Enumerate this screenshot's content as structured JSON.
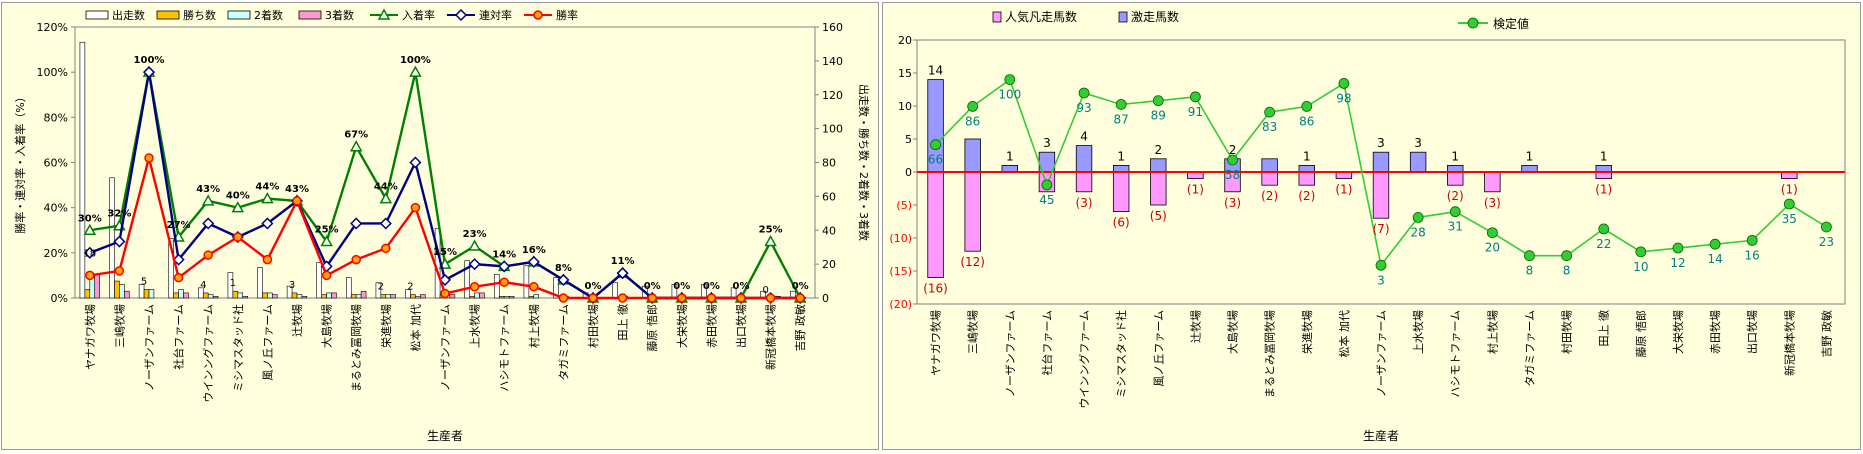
{
  "chart_data": [
    {
      "type": "bar",
      "xlabel": "生産者",
      "ylabel": "勝率・連対率・入着率（%）",
      "y2label": "出走数・勝ち数・2着数・3着数",
      "ylim": [
        0,
        120
      ],
      "y2lim": [
        0,
        160
      ],
      "yticks": [
        "0%",
        "20%",
        "40%",
        "60%",
        "80%",
        "100%",
        "120%"
      ],
      "y2ticks": [
        "0",
        "20",
        "40",
        "60",
        "80",
        "100",
        "120",
        "140",
        "160"
      ],
      "legend_position": "top",
      "grid": false,
      "categories": [
        "ヤナガワ牧場",
        "三嶋牧場",
        "ノーザンファーム",
        "社台ファーム",
        "ウインングファーム",
        "ミシマスタッド社",
        "風ノ丘ファーム",
        "辻牧場",
        "大島牧場",
        "まるとみ冨岡牧場",
        "栄進牧場",
        "松本 加代",
        "ノーザンファーム",
        "上水牧場",
        "ハシモトファーム",
        "村上牧場",
        "タガミファーム",
        "村田牧場",
        "田上 徹",
        "藤原 悟郎",
        "大栄牧場",
        "赤田牧場",
        "出口牧場",
        "新冠橋本牧場",
        "吉野 政敏"
      ],
      "bar_series": [
        {
          "name": "出走数",
          "color": "#FFFFFF",
          "values": [
            151,
            71,
            8,
            35,
            6,
            15,
            18,
            7,
            21,
            12,
            9,
            5,
            41,
            22,
            14,
            19,
            12,
            3,
            9,
            7,
            8,
            8,
            6,
            4,
            4
          ]
        },
        {
          "name": "勝ち数",
          "color": "#FFC000",
          "values": [
            5,
            10,
            5,
            3,
            3,
            4,
            3,
            3,
            2,
            2,
            2,
            2,
            2,
            1,
            1,
            1,
            0,
            0,
            0,
            0,
            0,
            0,
            0,
            0,
            0
          ]
        },
        {
          "name": "2着数",
          "color": "#CCFFFF",
          "values": [
            12,
            8,
            5,
            5,
            2,
            3,
            3,
            2,
            3,
            2,
            2,
            1,
            2,
            3,
            1,
            2,
            1,
            0,
            1,
            0,
            0,
            0,
            0,
            0,
            0
          ]
        },
        {
          "name": "3着数",
          "color": "#FF99CC",
          "values": [
            14,
            4,
            0,
            3,
            1,
            1,
            2,
            1,
            3,
            4,
            2,
            2,
            2,
            3,
            1,
            0,
            0,
            0,
            0,
            0,
            0,
            0,
            0,
            1,
            0
          ]
        }
      ],
      "line_series": [
        {
          "name": "入着率",
          "color": "#008000",
          "marker": "triangle",
          "values": [
            30,
            32,
            100,
            27,
            43,
            40,
            44,
            43,
            25,
            67,
            44,
            100,
            15,
            23,
            14,
            16,
            8,
            0,
            11,
            0,
            0,
            0,
            0,
            25,
            0
          ]
        },
        {
          "name": "連対率",
          "color": "#000080",
          "marker": "diamond",
          "values": [
            20,
            25,
            100,
            17,
            33,
            27,
            33,
            43,
            14,
            33,
            33,
            60,
            8,
            15,
            14,
            16,
            8,
            0,
            11,
            0,
            0,
            0,
            0,
            0,
            0
          ]
        },
        {
          "name": "勝率",
          "color": "#FF0000",
          "marker": "circle",
          "values": [
            10,
            12,
            62,
            9,
            19,
            27,
            17,
            43,
            10,
            17,
            22,
            40,
            2,
            5,
            7,
            5,
            0,
            0,
            0,
            0,
            0,
            0,
            0,
            0,
            0
          ]
        }
      ],
      "pct_labels": [
        "30%",
        "32%",
        "100%",
        "27%",
        "43%",
        "40%",
        "44%",
        "43%",
        "25%",
        "67%",
        "44%",
        "100%",
        "15%",
        "23%",
        "14%",
        "16%",
        "8%",
        "0%",
        "11%",
        "0%",
        "0%",
        "0%",
        "0%",
        "25%",
        "0%"
      ],
      "count_labels": [
        "",
        "",
        "5",
        "",
        "4",
        "1",
        "",
        "3",
        "",
        "",
        "2",
        "2",
        "",
        "",
        "",
        "",
        "",
        "",
        "",
        "",
        "",
        "",
        "",
        "0",
        ""
      ],
      "small_labels": [
        "18",
        "",
        "",
        "",
        "",
        "",
        "",
        "",
        "",
        "",
        "",
        "",
        "",
        "",
        "",
        "",
        "",
        "",
        "",
        "",
        "",
        "",
        "",
        "",
        ""
      ]
    },
    {
      "type": "bar",
      "xlabel": "生産者",
      "ylabel": "",
      "ylim": [
        -20,
        20
      ],
      "yticks": [
        "20",
        "15",
        "10",
        "5",
        "0",
        "(5)",
        "(10)",
        "(15)",
        "(20)"
      ],
      "legend_position": "top",
      "grid": false,
      "categories": [
        "ヤナガワ牧場",
        "三嶋牧場",
        "ノーザンファーム",
        "社台ファーム",
        "ウインングファーム",
        "ミシマスタッド社",
        "風ノ丘ファーム",
        "辻牧場",
        "大島牧場",
        "まるとみ冨岡牧場",
        "栄進牧場",
        "松本 加代",
        "ノーザンファーム",
        "上水牧場",
        "ハシモトファーム",
        "村上牧場",
        "タガミファーム",
        "村田牧場",
        "田上 徹",
        "藤原 悟郎",
        "大栄牧場",
        "赤田牧場",
        "出口牧場",
        "新冠橋本牧場",
        "吉野 政敏"
      ],
      "bar_series": [
        {
          "name": "人気凡走馬数",
          "color": "#FF99FF",
          "values": [
            -16,
            -12,
            0,
            -3,
            -3,
            -6,
            -5,
            -1,
            -3,
            -2,
            -2,
            -1,
            -7,
            0,
            -2,
            -3,
            0,
            0,
            -1,
            0,
            0,
            0,
            0,
            -1,
            0
          ]
        },
        {
          "name": "激走馬数",
          "color": "#9999FF",
          "values": [
            14,
            5,
            1,
            3,
            4,
            1,
            2,
            0,
            2,
            2,
            1,
            0,
            3,
            3,
            1,
            0,
            1,
            0,
            1,
            0,
            0,
            0,
            0,
            0,
            0
          ]
        }
      ],
      "line_series": [
        {
          "name": "検定値",
          "color": "#33CC33",
          "marker": "circle",
          "values": [
            66,
            86,
            100,
            45,
            93,
            87,
            89,
            91,
            58,
            83,
            86,
            98,
            3,
            28,
            31,
            20,
            8,
            8,
            22,
            10,
            12,
            14,
            16,
            35,
            23
          ]
        }
      ],
      "pos_labels": [
        "14",
        "",
        "1",
        "3",
        "4",
        "1",
        "2",
        "",
        "2",
        "",
        "1",
        "",
        "3",
        "3",
        "1",
        "",
        "1",
        "",
        "1",
        "",
        "",
        "",
        "",
        "",
        ""
      ],
      "neg_labels": [
        "(16)",
        "(12)",
        "",
        "",
        "(3)",
        "(6)",
        "(5)",
        "(1)",
        "(3)",
        "(2)",
        "(2)",
        "(1)",
        "(7)",
        "",
        "(2)",
        "(3)",
        "",
        "",
        "(1)",
        "",
        "",
        "",
        "",
        "(1)",
        ""
      ]
    }
  ]
}
